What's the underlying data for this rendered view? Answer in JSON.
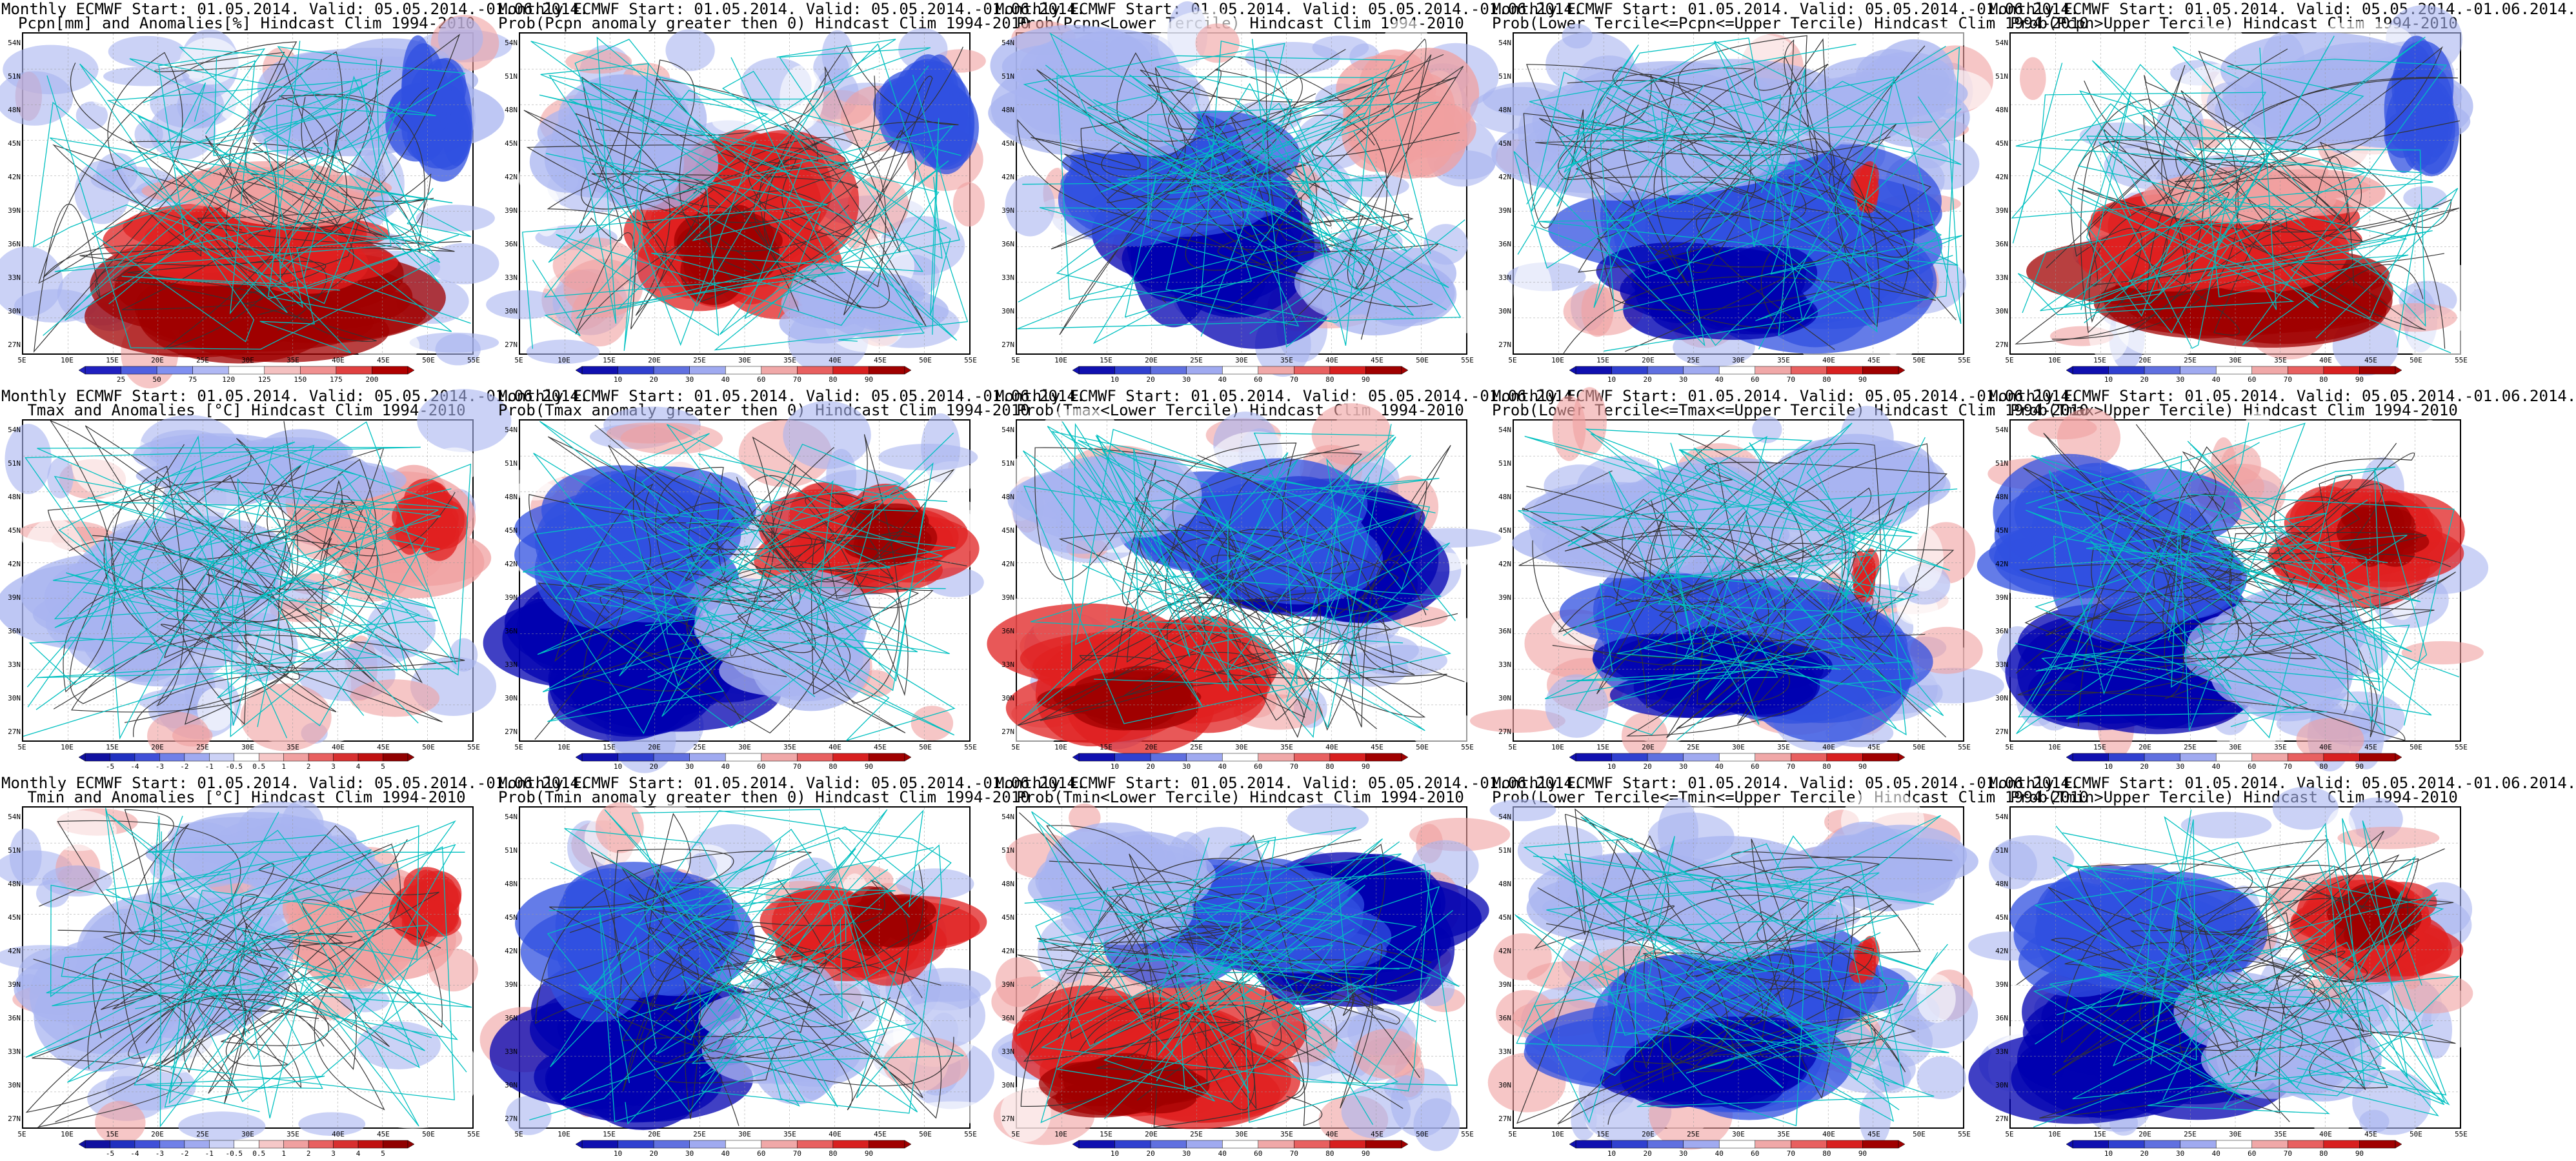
{
  "axes": {
    "lat_labels": [
      "54N",
      "51N",
      "48N",
      "45N",
      "42N",
      "39N",
      "36N",
      "33N",
      "30N",
      "27N"
    ],
    "lon_labels": [
      "5E",
      "10E",
      "15E",
      "20E",
      "25E",
      "30E",
      "35E",
      "40E",
      "45E",
      "50E",
      "55E"
    ]
  },
  "colorbars": {
    "pcpn_anom": {
      "labels": [
        "25",
        "50",
        "75",
        "120",
        "125",
        "150",
        "175",
        "200"
      ]
    },
    "temp_anom": {
      "labels": [
        "-5",
        "-4",
        "-3",
        "-2",
        "-1",
        "-0.5",
        "0.5",
        "1",
        "2",
        "3",
        "4",
        "5"
      ]
    },
    "prob": {
      "labels": [
        "10",
        "20",
        "30",
        "40",
        "60",
        "70",
        "80",
        "90"
      ]
    }
  },
  "panels": [
    {
      "title1": "Monthly ECMWF Start: 01.05.2014. Valid: 05.05.2014.-01.06.2014.",
      "title2": "Pcpn[mm] and Anomalies[%] Hindcast Clim 1994-2010",
      "colorbar": "pcpn_anom",
      "pattern": "south-red"
    },
    {
      "title1": "Monthly ECMWF Start: 01.05.2014. Valid: 05.05.2014.-01.06.2014.",
      "title2": "Prob(Pcpn anomaly greater then 0) Hindcast Clim 1994-2010",
      "colorbar": "prob",
      "pattern": "center-red"
    },
    {
      "title1": "Monthly ECMWF Start: 01.05.2014. Valid: 05.05.2014.-01.06.2014.",
      "title2": "Prob(Pcpn<Lower Tercile) Hindcast Clim 1994-2010",
      "colorbar": "prob",
      "pattern": "center-blue"
    },
    {
      "title1": "Monthly ECMWF Start: 01.05.2014. Valid: 05.05.2014.-01.06.2014.",
      "title2": "Prob(Lower Tercile<=Pcpn<=Upper Tercile) Hindcast Clim 1994-2010",
      "colorbar": "prob",
      "pattern": "blue-mostly"
    },
    {
      "title1": "Monthly ECMWF Start: 01.05.2014. Valid: 05.05.2014.-01.06.2014.",
      "title2": "Prob(Pcpn>Upper Tercile) Hindcast Clim 1994-2010",
      "colorbar": "prob",
      "pattern": "south-red"
    },
    {
      "title1": "Monthly ECMWF Start: 01.05.2014. Valid: 05.05.2014.-01.06.2014.",
      "title2": "Tmax and Anomalies [°C] Hindcast Clim 1994-2010",
      "colorbar": "temp_anom",
      "pattern": "light-east-red"
    },
    {
      "title1": "Monthly ECMWF Start: 01.05.2014. Valid: 05.05.2014.-01.06.2014.",
      "title2": "Prob(Tmax anomaly greater then 0) Hindcast Clim 1994-2010",
      "colorbar": "prob",
      "pattern": "east-red"
    },
    {
      "title1": "Monthly ECMWF Start: 01.05.2014. Valid: 05.05.2014.-01.06.2014.",
      "title2": "Prob(Tmax<Lower Tercile) Hindcast Clim 1994-2010",
      "colorbar": "prob",
      "pattern": "southwest-red"
    },
    {
      "title1": "Monthly ECMWF Start: 01.05.2014. Valid: 05.05.2014.-01.06.2014.",
      "title2": "Prob(Lower Tercile<=Tmax<=Upper Tercile) Hindcast Clim 1994-2010",
      "colorbar": "prob",
      "pattern": "blue-mostly"
    },
    {
      "title1": "Monthly ECMWF Start: 01.05.2014. Valid: 05.05.2014.-01.06.2014.",
      "title2": "Prob(Tmax>Upper Tercile) Hindcast Clim 1994-2010",
      "colorbar": "prob",
      "pattern": "east-red"
    },
    {
      "title1": "Monthly ECMWF Start: 01.05.2014. Valid: 05.05.2014.-01.06.2014.",
      "title2": "Tmin and Anomalies [°C] Hindcast Clim 1994-2010",
      "colorbar": "temp_anom",
      "pattern": "light-east-red"
    },
    {
      "title1": "Monthly ECMWF Start: 01.05.2014. Valid: 05.05.2014.-01.06.2014.",
      "title2": "Prob(Tmin anomaly greater then 0) Hindcast Clim 1994-2010",
      "colorbar": "prob",
      "pattern": "east-red"
    },
    {
      "title1": "Monthly ECMWF Start: 01.05.2014. Valid: 05.05.2014.-01.06.2014.",
      "title2": "Prob(Tmin<Lower Tercile) Hindcast Clim 1994-2010",
      "colorbar": "prob",
      "pattern": "southwest-red"
    },
    {
      "title1": "Monthly ECMWF Start: 01.05.2014. Valid: 05.05.2014.-01.06.2014.",
      "title2": "Prob(Lower Tercile<=Tmin<=Upper Tercile) Hindcast Clim 1994-2010",
      "colorbar": "prob",
      "pattern": "blue-mostly"
    },
    {
      "title1": "Monthly ECMWF Start: 01.05.2014. Valid: 05.05.2014.-01.06.2014.",
      "title2": "Prob(Tmin>Upper Tercile) Hindcast Clim 1994-2010",
      "colorbar": "prob",
      "pattern": "east-red"
    }
  ],
  "colors": {
    "border": "#00c0c0",
    "contour": "#333333",
    "red_dark": "#a00000",
    "red": "#e02020",
    "red_light": "#f0a0a0",
    "blue_dark": "#0000b0",
    "blue": "#3050e0",
    "blue_light": "#a8b4f0",
    "white": "#ffffff"
  }
}
